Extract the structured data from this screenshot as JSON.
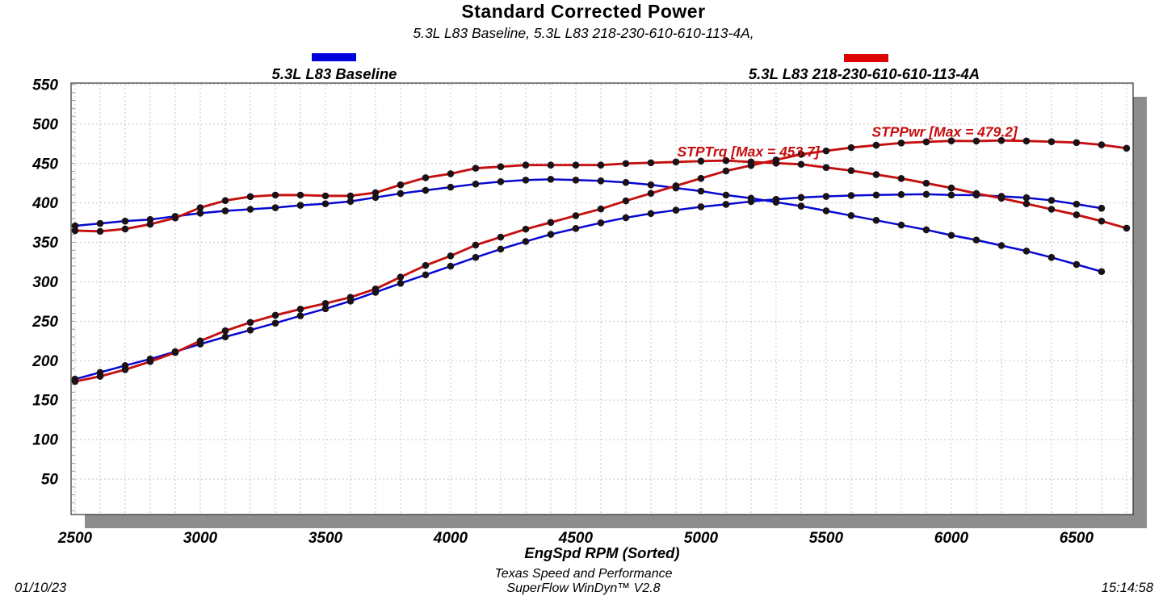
{
  "title": "Standard Corrected Power",
  "subtitle": "5.3L L83 Baseline, 5.3L L83 218-230-610-610-113-4A,",
  "legend": [
    {
      "label": "5.3L L83 Baseline",
      "color": "#0101dd"
    },
    {
      "label": "5.3L L83 218-230-610-610-113-4A",
      "color": "#dd0404"
    }
  ],
  "footer": {
    "company": "Texas Speed and Performance",
    "software": "SuperFlow WinDyn™ V2.8",
    "date": "01/10/23",
    "time": "15:14:58"
  },
  "chart_data": {
    "type": "line",
    "title": "Standard Corrected Power",
    "xlabel": "EngSpd  RPM   (Sorted)",
    "ylabel": "",
    "xlim": [
      2484,
      6726
    ],
    "ylim": [
      5,
      552
    ],
    "x_ticks": [
      2500,
      3000,
      3500,
      4000,
      4500,
      5000,
      5500,
      6000,
      6500
    ],
    "y_ticks": [
      50,
      100,
      150,
      200,
      250,
      300,
      350,
      400,
      450,
      500,
      550
    ],
    "grid": true,
    "x_minor_grid_step": 100,
    "y_minor_tick_step": 10,
    "grid_color": "#c6c6c6",
    "marker_color": "#1b1218",
    "series": [
      {
        "run": "5.3L L83 Baseline",
        "channel": "STPTrq",
        "color": "#0707d2",
        "rpm_start": 2500,
        "rpm_step": 100,
        "values": [
          371,
          374,
          377,
          379,
          383,
          387,
          390,
          392,
          394,
          397,
          399,
          402,
          407,
          412,
          416,
          420,
          424,
          427,
          429,
          430,
          429,
          428,
          426,
          423,
          419,
          415,
          410,
          406,
          401,
          396,
          390,
          384,
          378,
          372,
          366,
          359,
          353,
          346,
          339,
          331,
          322,
          313
        ]
      },
      {
        "run": "5.3L L83 Baseline",
        "channel": "STPPwr",
        "color": "#0707d2",
        "rpm_start": 2500,
        "rpm_step": 100,
        "values": [
          176.6,
          185.2,
          193.8,
          202.1,
          211.5,
          221.1,
          230.2,
          238.8,
          247.6,
          257.0,
          265.9,
          275.6,
          286.7,
          298.1,
          308.9,
          319.9,
          331.0,
          341.5,
          351.2,
          360.2,
          367.6,
          374.8,
          381.3,
          386.6,
          390.9,
          395.1,
          398.2,
          401.9,
          404.6,
          407.0,
          408.3,
          409.4,
          410.1,
          410.7,
          411.0,
          410.1,
          410.0,
          408.4,
          406.6,
          403.3,
          398.5,
          393.3
        ]
      },
      {
        "run": "5.3L L83 218-230-610-610-113-4A",
        "channel": "STPTrq",
        "max": 453.7,
        "color": "#c51010",
        "rpm_start": 2500,
        "rpm_step": 100,
        "values": [
          365,
          364,
          367,
          373,
          381,
          394,
          403,
          408,
          410,
          410,
          409,
          409,
          413,
          423,
          432,
          437,
          444,
          446,
          448,
          448,
          448,
          448,
          450,
          451,
          452,
          453,
          453.7,
          452,
          450.5,
          449,
          445,
          441,
          436,
          431,
          425,
          419,
          412,
          406,
          399,
          392,
          385,
          377,
          368
        ]
      },
      {
        "run": "5.3L L83 218-230-610-610-113-4A",
        "channel": "STPPwr",
        "max": 479.2,
        "color": "#c51010",
        "rpm_start": 2500,
        "rpm_step": 100,
        "values": [
          173.7,
          180.2,
          188.7,
          198.9,
          210.4,
          225.1,
          237.9,
          248.6,
          257.6,
          265.4,
          272.6,
          280.4,
          291.0,
          306.1,
          320.8,
          332.9,
          346.6,
          356.7,
          366.8,
          375.3,
          383.9,
          392.4,
          402.7,
          412.2,
          421.7,
          431.2,
          440.6,
          447.5,
          454.6,
          461.7,
          466.0,
          470.2,
          473.2,
          476.0,
          477.4,
          478.7,
          478.5,
          479.2,
          478.6,
          477.7,
          476.5,
          473.7,
          469.4
        ]
      }
    ],
    "annotations": [
      {
        "text": "STPTrq [Max = 453.7]",
        "rpm": 4905,
        "value": 459,
        "color": "#c60c0c"
      },
      {
        "text": "STPPwr [Max = 479.2]",
        "rpm": 5682,
        "value": 484,
        "color": "#c60c0c"
      }
    ]
  }
}
